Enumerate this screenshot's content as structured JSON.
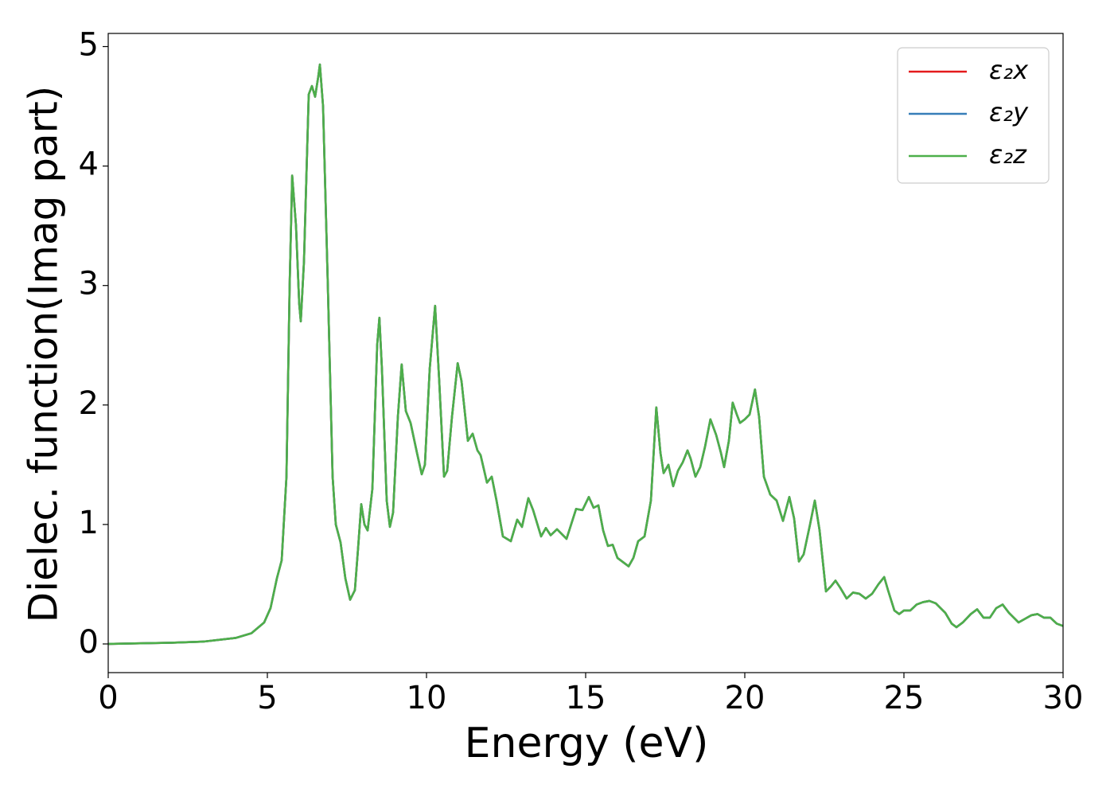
{
  "chart_data": {
    "type": "line",
    "xlabel": "Energy (eV)",
    "ylabel": "Dielec. function(Imag part)",
    "xlim": [
      0,
      30
    ],
    "ylim": [
      -0.24,
      5.11
    ],
    "xticks": [
      0,
      5,
      10,
      15,
      20,
      25,
      30
    ],
    "yticks": [
      0,
      1,
      2,
      3,
      4,
      5
    ],
    "legend": "upper right",
    "x": [
      0,
      1,
      2,
      3,
      4,
      4.5,
      4.9,
      5.1,
      5.3,
      5.45,
      5.6,
      5.7,
      5.78,
      5.9,
      6.0,
      6.05,
      6.15,
      6.3,
      6.4,
      6.5,
      6.6,
      6.65,
      6.75,
      6.9,
      7.05,
      7.15,
      7.3,
      7.45,
      7.6,
      7.75,
      7.85,
      7.95,
      8.05,
      8.15,
      8.3,
      8.45,
      8.52,
      8.6,
      8.75,
      8.85,
      8.95,
      9.1,
      9.22,
      9.35,
      9.5,
      9.7,
      9.85,
      9.95,
      10.1,
      10.27,
      10.4,
      10.55,
      10.65,
      10.8,
      10.98,
      11.1,
      11.3,
      11.45,
      11.6,
      11.7,
      11.9,
      12.05,
      12.2,
      12.4,
      12.65,
      12.85,
      13.0,
      13.2,
      13.35,
      13.6,
      13.75,
      13.9,
      14.1,
      14.4,
      14.7,
      14.9,
      15.1,
      15.25,
      15.4,
      15.55,
      15.7,
      15.85,
      16.0,
      16.2,
      16.35,
      16.5,
      16.65,
      16.85,
      17.05,
      17.22,
      17.35,
      17.45,
      17.6,
      17.75,
      17.9,
      18.05,
      18.2,
      18.3,
      18.45,
      18.6,
      18.75,
      18.92,
      19.1,
      19.25,
      19.35,
      19.5,
      19.62,
      19.75,
      19.85,
      20.0,
      20.15,
      20.32,
      20.45,
      20.6,
      20.8,
      21.0,
      21.2,
      21.4,
      21.55,
      21.7,
      21.85,
      22.05,
      22.2,
      22.35,
      22.55,
      22.7,
      22.85,
      23.0,
      23.2,
      23.4,
      23.6,
      23.8,
      24.0,
      24.2,
      24.38,
      24.5,
      24.7,
      24.85,
      25.0,
      25.2,
      25.4,
      25.6,
      25.8,
      26.0,
      26.3,
      26.5,
      26.65,
      26.85,
      27.1,
      27.3,
      27.5,
      27.7,
      27.9,
      28.1,
      28.3,
      28.6,
      28.8,
      29.0,
      29.2,
      29.4,
      29.6,
      29.8,
      30.0
    ],
    "series": [
      {
        "name": "ε₂x",
        "color": "#e41a1c",
        "values": [
          0,
          0.005,
          0.01,
          0.02,
          0.05,
          0.09,
          0.18,
          0.3,
          0.55,
          0.7,
          1.4,
          3.0,
          3.92,
          3.5,
          2.85,
          2.7,
          3.2,
          4.6,
          4.67,
          4.58,
          4.75,
          4.85,
          4.5,
          3.0,
          1.4,
          1.0,
          0.85,
          0.55,
          0.37,
          0.45,
          0.8,
          1.17,
          1.0,
          0.95,
          1.3,
          2.5,
          2.73,
          2.3,
          1.2,
          0.98,
          1.1,
          1.9,
          2.34,
          1.95,
          1.85,
          1.6,
          1.42,
          1.5,
          2.3,
          2.83,
          2.2,
          1.4,
          1.45,
          1.9,
          2.35,
          2.2,
          1.7,
          1.76,
          1.62,
          1.58,
          1.35,
          1.4,
          1.2,
          0.9,
          0.86,
          1.04,
          0.98,
          1.22,
          1.12,
          0.9,
          0.97,
          0.91,
          0.96,
          0.88,
          1.13,
          1.12,
          1.23,
          1.14,
          1.16,
          0.95,
          0.82,
          0.83,
          0.72,
          0.68,
          0.65,
          0.72,
          0.86,
          0.9,
          1.2,
          1.98,
          1.6,
          1.43,
          1.5,
          1.32,
          1.45,
          1.52,
          1.62,
          1.55,
          1.4,
          1.48,
          1.65,
          1.88,
          1.75,
          1.6,
          1.48,
          1.7,
          2.02,
          1.92,
          1.85,
          1.88,
          1.92,
          2.13,
          1.9,
          1.4,
          1.25,
          1.2,
          1.03,
          1.23,
          1.05,
          0.69,
          0.75,
          1.0,
          1.2,
          0.95,
          0.44,
          0.48,
          0.53,
          0.47,
          0.38,
          0.43,
          0.42,
          0.38,
          0.42,
          0.5,
          0.56,
          0.45,
          0.28,
          0.25,
          0.28,
          0.28,
          0.33,
          0.35,
          0.36,
          0.34,
          0.26,
          0.17,
          0.14,
          0.18,
          0.25,
          0.29,
          0.22,
          0.22,
          0.3,
          0.33,
          0.26,
          0.18,
          0.21,
          0.24,
          0.25,
          0.22,
          0.22,
          0.17,
          0.15
        ]
      },
      {
        "name": "ε₂y",
        "color": "#377eb8",
        "values": [
          0,
          0.005,
          0.01,
          0.02,
          0.05,
          0.09,
          0.18,
          0.3,
          0.55,
          0.7,
          1.4,
          3.0,
          3.92,
          3.5,
          2.85,
          2.7,
          3.2,
          4.6,
          4.67,
          4.58,
          4.75,
          4.85,
          4.5,
          3.0,
          1.4,
          1.0,
          0.85,
          0.55,
          0.37,
          0.45,
          0.8,
          1.17,
          1.0,
          0.95,
          1.3,
          2.5,
          2.73,
          2.3,
          1.2,
          0.98,
          1.1,
          1.9,
          2.34,
          1.95,
          1.85,
          1.6,
          1.42,
          1.5,
          2.3,
          2.83,
          2.2,
          1.4,
          1.45,
          1.9,
          2.35,
          2.2,
          1.7,
          1.76,
          1.62,
          1.58,
          1.35,
          1.4,
          1.2,
          0.9,
          0.86,
          1.04,
          0.98,
          1.22,
          1.12,
          0.9,
          0.97,
          0.91,
          0.96,
          0.88,
          1.13,
          1.12,
          1.23,
          1.14,
          1.16,
          0.95,
          0.82,
          0.83,
          0.72,
          0.68,
          0.65,
          0.72,
          0.86,
          0.9,
          1.2,
          1.98,
          1.6,
          1.43,
          1.5,
          1.32,
          1.45,
          1.52,
          1.62,
          1.55,
          1.4,
          1.48,
          1.65,
          1.88,
          1.75,
          1.6,
          1.48,
          1.7,
          2.02,
          1.92,
          1.85,
          1.88,
          1.92,
          2.13,
          1.9,
          1.4,
          1.25,
          1.2,
          1.03,
          1.23,
          1.05,
          0.69,
          0.75,
          1.0,
          1.2,
          0.95,
          0.44,
          0.48,
          0.53,
          0.47,
          0.38,
          0.43,
          0.42,
          0.38,
          0.42,
          0.5,
          0.56,
          0.45,
          0.28,
          0.25,
          0.28,
          0.28,
          0.33,
          0.35,
          0.36,
          0.34,
          0.26,
          0.17,
          0.14,
          0.18,
          0.25,
          0.29,
          0.22,
          0.22,
          0.3,
          0.33,
          0.26,
          0.18,
          0.21,
          0.24,
          0.25,
          0.22,
          0.22,
          0.17,
          0.15
        ]
      },
      {
        "name": "ε₂z",
        "color": "#4daf4a",
        "values": [
          0,
          0.005,
          0.01,
          0.02,
          0.05,
          0.09,
          0.18,
          0.3,
          0.55,
          0.7,
          1.4,
          3.0,
          3.92,
          3.5,
          2.85,
          2.7,
          3.2,
          4.6,
          4.67,
          4.58,
          4.75,
          4.85,
          4.5,
          3.0,
          1.4,
          1.0,
          0.85,
          0.55,
          0.37,
          0.45,
          0.8,
          1.17,
          1.0,
          0.95,
          1.3,
          2.5,
          2.73,
          2.3,
          1.2,
          0.98,
          1.1,
          1.9,
          2.34,
          1.95,
          1.85,
          1.6,
          1.42,
          1.5,
          2.3,
          2.83,
          2.2,
          1.4,
          1.45,
          1.9,
          2.35,
          2.2,
          1.7,
          1.76,
          1.62,
          1.58,
          1.35,
          1.4,
          1.2,
          0.9,
          0.86,
          1.04,
          0.98,
          1.22,
          1.12,
          0.9,
          0.97,
          0.91,
          0.96,
          0.88,
          1.13,
          1.12,
          1.23,
          1.14,
          1.16,
          0.95,
          0.82,
          0.83,
          0.72,
          0.68,
          0.65,
          0.72,
          0.86,
          0.9,
          1.2,
          1.98,
          1.6,
          1.43,
          1.5,
          1.32,
          1.45,
          1.52,
          1.62,
          1.55,
          1.4,
          1.48,
          1.65,
          1.88,
          1.75,
          1.6,
          1.48,
          1.7,
          2.02,
          1.92,
          1.85,
          1.88,
          1.92,
          2.13,
          1.9,
          1.4,
          1.25,
          1.2,
          1.03,
          1.23,
          1.05,
          0.69,
          0.75,
          1.0,
          1.2,
          0.95,
          0.44,
          0.48,
          0.53,
          0.47,
          0.38,
          0.43,
          0.42,
          0.38,
          0.42,
          0.5,
          0.56,
          0.45,
          0.28,
          0.25,
          0.28,
          0.28,
          0.33,
          0.35,
          0.36,
          0.34,
          0.26,
          0.17,
          0.14,
          0.18,
          0.25,
          0.29,
          0.22,
          0.22,
          0.3,
          0.33,
          0.26,
          0.18,
          0.21,
          0.24,
          0.25,
          0.22,
          0.22,
          0.17,
          0.15
        ]
      }
    ]
  }
}
